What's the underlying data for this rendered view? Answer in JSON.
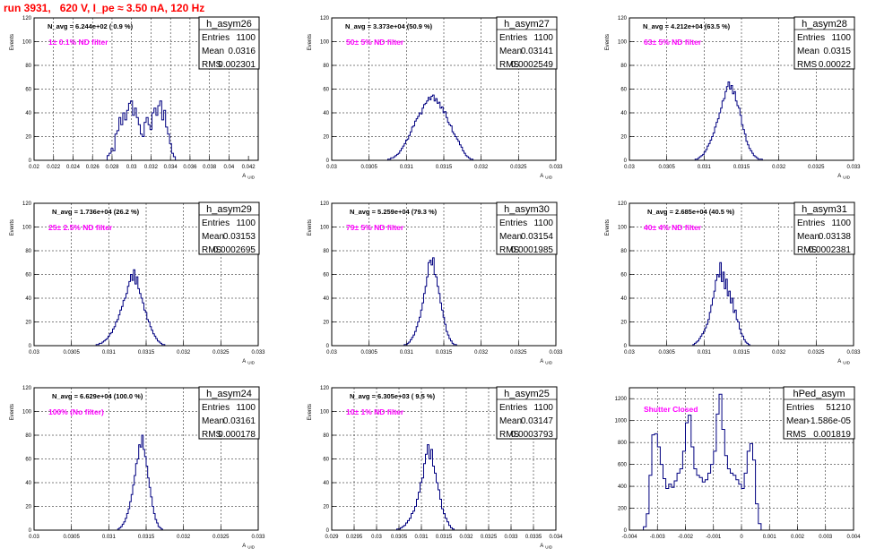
{
  "header": "run 3931,   620 V, I_pe ≈ 3.50 nA, 120 Hz",
  "colors": {
    "hist": "#000080",
    "header": "#ff0000",
    "filter": "#ff00ff"
  },
  "chart_data": [
    {
      "type": "histogram",
      "name": "h_asym26",
      "navg": "N_avg = 6.244e+02 ( 0.9 %)",
      "filter": "1± 0.1% ND filter",
      "stats": {
        "entries": "1100",
        "mean": "0.0316",
        "rms": "0.002301"
      },
      "xlabel": "A_UID",
      "ylabel": "Events",
      "xlim": [
        0.02,
        0.043
      ],
      "ylim": [
        0,
        120
      ],
      "xticks": [
        0.02,
        0.022,
        0.024,
        0.026,
        0.028,
        0.03,
        0.032,
        0.034,
        0.036,
        0.038,
        0.04,
        0.042
      ],
      "xticklabels": [
        "0.02",
        "0.022",
        "0.024",
        "0.026",
        "0.028",
        "0.03",
        "0.032",
        "0.034",
        "0.036",
        "0.038",
        "0.04",
        "0.042"
      ],
      "yticks": [
        0,
        20,
        40,
        60,
        80,
        100,
        120
      ],
      "bin_start": 0.0275,
      "bin_width": 0.0002,
      "counts": [
        4,
        6,
        10,
        8,
        22,
        25,
        36,
        30,
        40,
        34,
        42,
        48,
        50,
        38,
        44,
        36,
        30,
        22,
        20,
        32,
        36,
        30,
        26,
        40,
        44,
        38,
        46,
        50,
        34,
        42,
        28,
        22,
        14,
        6,
        3
      ]
    },
    {
      "type": "histogram",
      "name": "h_asym27",
      "navg": "N_avg = 3.373e+04 (50.9 %)",
      "filter": "50± 5% ND filter",
      "stats": {
        "entries": "1100",
        "mean": "0.03141",
        "rms": "0.0002549"
      },
      "xlabel": "A_UID",
      "ylabel": "Events",
      "xlim": [
        0.03,
        0.033
      ],
      "ylim": [
        0,
        120
      ],
      "xticks": [
        0.03,
        0.0305,
        0.031,
        0.0315,
        0.032,
        0.0325,
        0.033
      ],
      "xticklabels": [
        "0.03",
        "0.0305",
        "0.031",
        "0.0315",
        "0.032",
        "0.0325",
        "0.033"
      ],
      "yticks": [
        0,
        20,
        40,
        60,
        80,
        100,
        120
      ],
      "bin_start": 0.03075,
      "bin_width": 2e-05,
      "counts": [
        1,
        1,
        2,
        2,
        3,
        4,
        5,
        6,
        8,
        10,
        12,
        14,
        17,
        18,
        21,
        24,
        28,
        29,
        33,
        35,
        37,
        40,
        39,
        44,
        47,
        48,
        50,
        53,
        51,
        54,
        55,
        50,
        52,
        48,
        49,
        44,
        45,
        40,
        41,
        36,
        32,
        30,
        29,
        24,
        22,
        20,
        18,
        16,
        13,
        11,
        8,
        6,
        4,
        3,
        2,
        1,
        1
      ]
    },
    {
      "type": "histogram",
      "name": "h_asym28",
      "navg": "N_avg = 4.212e+04 (63.5 %)",
      "filter": "63± 5% ND filter",
      "stats": {
        "entries": "1100",
        "mean": "0.0315",
        "rms": "0.00022"
      },
      "xlabel": "A_UID",
      "ylabel": "Events",
      "xlim": [
        0.03,
        0.033
      ],
      "ylim": [
        0,
        120
      ],
      "xticks": [
        0.03,
        0.0305,
        0.031,
        0.0315,
        0.032,
        0.0325,
        0.033
      ],
      "xticklabels": [
        "0.03",
        "0.0305",
        "0.031",
        "0.0315",
        "0.032",
        "0.0325",
        "0.033"
      ],
      "yticks": [
        0,
        20,
        40,
        60,
        80,
        100,
        120
      ],
      "bin_start": 0.03088,
      "bin_width": 2e-05,
      "counts": [
        1,
        1,
        2,
        3,
        4,
        5,
        7,
        9,
        12,
        14,
        17,
        20,
        23,
        28,
        32,
        35,
        40,
        44,
        50,
        52,
        58,
        62,
        66,
        60,
        63,
        56,
        58,
        50,
        46,
        44,
        38,
        30,
        26,
        22,
        16,
        13,
        10,
        8,
        6,
        4,
        3,
        2,
        1,
        1,
        1
      ]
    },
    {
      "type": "histogram",
      "name": "h_asym29",
      "navg": "N_avg = 1.736e+04 (26.2 %)",
      "filter": "25± 2.5% ND filter",
      "stats": {
        "entries": "1100",
        "mean": "0.03153",
        "rms": "0.0002695"
      },
      "xlabel": "A_UID",
      "ylabel": "Events",
      "xlim": [
        0.03,
        0.033
      ],
      "ylim": [
        0,
        120
      ],
      "xticks": [
        0.03,
        0.0305,
        0.031,
        0.0315,
        0.032,
        0.0325,
        0.033
      ],
      "xticklabels": [
        "0.03",
        "0.0305",
        "0.031",
        "0.0315",
        "0.032",
        "0.0325",
        "0.033"
      ],
      "yticks": [
        0,
        20,
        40,
        60,
        80,
        100,
        120
      ],
      "bin_start": 0.03083,
      "bin_width": 2e-05,
      "counts": [
        1,
        1,
        2,
        2,
        3,
        4,
        5,
        6,
        8,
        10,
        11,
        14,
        16,
        20,
        22,
        26,
        30,
        33,
        38,
        40,
        44,
        50,
        54,
        60,
        55,
        64,
        52,
        58,
        48,
        44,
        40,
        36,
        30,
        28,
        22,
        20,
        16,
        13,
        10,
        8,
        6,
        4,
        3,
        2,
        1,
        1
      ]
    },
    {
      "type": "histogram",
      "name": "h_asym30",
      "navg": "N_avg = 5.259e+04 (79.3 %)",
      "filter": "79± 5% ND filter",
      "stats": {
        "entries": "1100",
        "mean": "0.03154",
        "rms": "0.0001985"
      },
      "xlabel": "A_UID",
      "ylabel": "Events",
      "xlim": [
        0.03,
        0.033
      ],
      "ylim": [
        0,
        120
      ],
      "xticks": [
        0.03,
        0.0305,
        0.031,
        0.0315,
        0.032,
        0.0325,
        0.033
      ],
      "xticklabels": [
        "0.03",
        "0.0305",
        "0.031",
        "0.0315",
        "0.032",
        "0.0325",
        "0.033"
      ],
      "yticks": [
        0,
        20,
        40,
        60,
        80,
        100,
        120
      ],
      "bin_start": 0.03097,
      "bin_width": 2e-05,
      "counts": [
        1,
        1,
        2,
        3,
        5,
        7,
        9,
        12,
        16,
        20,
        24,
        30,
        36,
        44,
        50,
        58,
        70,
        72,
        68,
        74,
        60,
        58,
        50,
        44,
        36,
        30,
        24,
        18,
        12,
        9,
        6,
        4,
        2,
        1,
        1
      ]
    },
    {
      "type": "histogram",
      "name": "h_asym31",
      "navg": "N_avg = 2.685e+04 (40.5 %)",
      "filter": "40± 4% ND filter",
      "stats": {
        "entries": "1100",
        "mean": "0.03138",
        "rms": "0.0002381"
      },
      "xlabel": "A_UID",
      "ylabel": "Events",
      "xlim": [
        0.03,
        0.033
      ],
      "ylim": [
        0,
        120
      ],
      "xticks": [
        0.03,
        0.0305,
        0.031,
        0.0315,
        0.032,
        0.0325,
        0.033
      ],
      "xticklabels": [
        "0.03",
        "0.0305",
        "0.031",
        "0.0315",
        "0.032",
        "0.0325",
        "0.033"
      ],
      "yticks": [
        0,
        20,
        40,
        60,
        80,
        100,
        120
      ],
      "bin_start": 0.03085,
      "bin_width": 2e-05,
      "counts": [
        1,
        2,
        3,
        4,
        6,
        8,
        10,
        12,
        15,
        18,
        22,
        28,
        34,
        40,
        46,
        55,
        60,
        58,
        70,
        54,
        62,
        48,
        56,
        42,
        46,
        36,
        40,
        28,
        30,
        22,
        20,
        14,
        10,
        8,
        5,
        3,
        2,
        1
      ]
    },
    {
      "type": "histogram",
      "name": "h_asym24",
      "navg": "N_avg = 6.629e+04 (100.0 %)",
      "filter": "100% (No filter)",
      "stats": {
        "entries": "1100",
        "mean": "0.03161",
        "rms": "0.000178"
      },
      "xlabel": "A_UID",
      "ylabel": "Events",
      "xlim": [
        0.03,
        0.033
      ],
      "ylim": [
        0,
        120
      ],
      "xticks": [
        0.03,
        0.0305,
        0.031,
        0.0315,
        0.032,
        0.0325,
        0.033
      ],
      "xticklabels": [
        "0.03",
        "0.0305",
        "0.031",
        "0.0315",
        "0.032",
        "0.0325",
        "0.033"
      ],
      "yticks": [
        0,
        20,
        40,
        60,
        80,
        100,
        120
      ],
      "bin_start": 0.03112,
      "bin_width": 2e-05,
      "counts": [
        1,
        2,
        3,
        5,
        7,
        10,
        14,
        18,
        24,
        30,
        38,
        46,
        56,
        60,
        72,
        70,
        80,
        68,
        62,
        54,
        44,
        36,
        28,
        20,
        14,
        9,
        6,
        3,
        2,
        1
      ]
    },
    {
      "type": "histogram",
      "name": "h_asym25",
      "navg": "N_avg = 6.305e+03 ( 9.5 %)",
      "filter": "10± 1% ND filter",
      "stats": {
        "entries": "1100",
        "mean": "0.03147",
        "rms": "0.0003793"
      },
      "xlabel": "A_UID",
      "ylabel": "Events",
      "xlim": [
        0.029,
        0.034
      ],
      "ylim": [
        0,
        120
      ],
      "xticks": [
        0.029,
        0.0295,
        0.03,
        0.0305,
        0.031,
        0.0315,
        0.032,
        0.0325,
        0.033,
        0.0335,
        0.034
      ],
      "xticklabels": [
        "0.029",
        "0.0295",
        "0.03",
        "0.0305",
        "0.031",
        "0.0315",
        "0.032",
        "0.0325",
        "0.033",
        "0.0335",
        "0.034"
      ],
      "yticks": [
        0,
        20,
        40,
        60,
        80,
        100,
        120
      ],
      "bin_start": 0.03045,
      "bin_width": 4e-05,
      "counts": [
        1,
        1,
        2,
        3,
        4,
        6,
        8,
        10,
        14,
        16,
        20,
        26,
        32,
        40,
        44,
        56,
        64,
        72,
        60,
        68,
        54,
        48,
        40,
        34,
        26,
        18,
        14,
        10,
        7,
        4,
        2,
        1
      ]
    },
    {
      "type": "histogram",
      "name": "hPed_asym",
      "navg": "",
      "filter": "Shutter Closed",
      "stats": {
        "entries": "51210",
        "mean": "-1.586e-05",
        "rms": "0.001819"
      },
      "xlabel": "",
      "ylabel": "",
      "xlim": [
        -0.004,
        0.004
      ],
      "ylim": [
        0,
        1300
      ],
      "xticks": [
        -0.004,
        -0.003,
        -0.002,
        -0.001,
        0,
        0.001,
        0.002,
        0.003,
        0.004
      ],
      "xticklabels": [
        "-0.004",
        "-0.003",
        "-0.002",
        "-0.001",
        "0",
        "0.001",
        "0.002",
        "0.003",
        "0.004"
      ],
      "yticks": [
        0,
        200,
        400,
        600,
        800,
        1000,
        1200
      ],
      "bin_start": -0.0035,
      "bin_width": 0.0001,
      "counts": [
        30,
        150,
        500,
        870,
        880,
        760,
        600,
        470,
        380,
        420,
        390,
        450,
        520,
        560,
        720,
        980,
        1050,
        760,
        560,
        500,
        480,
        440,
        460,
        520,
        600,
        720,
        1060,
        1240,
        920,
        680,
        560,
        520,
        500,
        460,
        420,
        380,
        520,
        720,
        790,
        640,
        240,
        60
      ]
    }
  ]
}
